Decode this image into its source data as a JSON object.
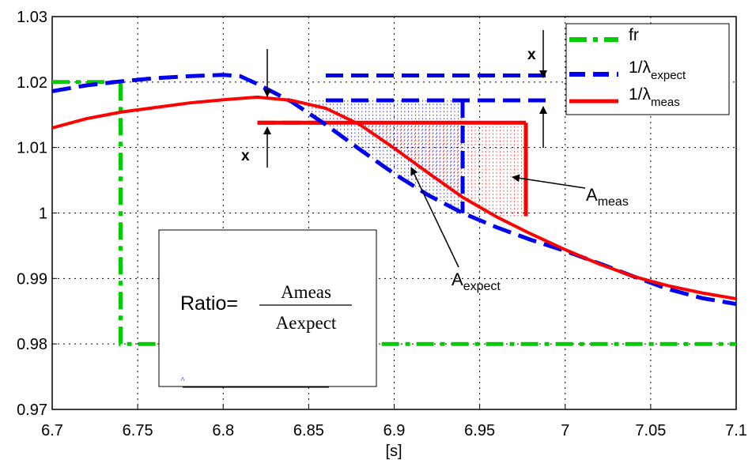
{
  "chart_data": {
    "type": "line",
    "xlabel": "[s]",
    "ylabel": "",
    "xlim": [
      6.7,
      7.1
    ],
    "ylim": [
      0.97,
      1.03
    ],
    "grid": true,
    "legend_position": "top-right",
    "x_ticks": [
      "6.7",
      "6.75",
      "6.8",
      "6.85",
      "6.9",
      "6.95",
      "7",
      "7.05",
      "7.1"
    ],
    "y_ticks": [
      "0.97",
      "0.98",
      "0.99",
      "1",
      "1.01",
      "1.02",
      "1.03"
    ],
    "series": [
      {
        "name": "fr",
        "color": "#00cc00",
        "style": "dash-dot",
        "points": [
          [
            6.7,
            1.02
          ],
          [
            6.74,
            1.02
          ],
          [
            6.74,
            0.98
          ],
          [
            7.1,
            0.98
          ]
        ]
      },
      {
        "name": "1/λexpect",
        "color": "#0000ee",
        "style": "dashed",
        "points": [
          [
            6.7,
            1.0186
          ],
          [
            6.72,
            1.0195
          ],
          [
            6.74,
            1.0201
          ],
          [
            6.76,
            1.0206
          ],
          [
            6.78,
            1.0209
          ],
          [
            6.8,
            1.0211
          ],
          [
            6.81,
            1.0209
          ],
          [
            6.82,
            1.0197
          ],
          [
            6.84,
            1.017
          ],
          [
            6.86,
            1.0135
          ],
          [
            6.88,
            1.0097
          ],
          [
            6.9,
            1.006
          ],
          [
            6.92,
            1.0027
          ],
          [
            6.94,
            1.0
          ],
          [
            6.96,
            0.9978
          ],
          [
            6.98,
            0.9959
          ],
          [
            7.0,
            0.9942
          ],
          [
            7.02,
            0.9923
          ],
          [
            7.04,
            0.9903
          ],
          [
            7.06,
            0.9884
          ],
          [
            7.08,
            0.987
          ],
          [
            7.1,
            0.9861
          ]
        ]
      },
      {
        "name": "1/λmeas",
        "color": "#ff0000",
        "style": "solid",
        "points": [
          [
            6.7,
            1.013
          ],
          [
            6.72,
            1.0144
          ],
          [
            6.74,
            1.0154
          ],
          [
            6.76,
            1.0161
          ],
          [
            6.78,
            1.0168
          ],
          [
            6.8,
            1.0173
          ],
          [
            6.82,
            1.0177
          ],
          [
            6.84,
            1.0172
          ],
          [
            6.86,
            1.016
          ],
          [
            6.88,
            1.0135
          ],
          [
            6.9,
            1.0099
          ],
          [
            6.92,
            1.0061
          ],
          [
            6.94,
            1.0024
          ],
          [
            6.96,
            0.9994
          ],
          [
            6.98,
            0.9968
          ],
          [
            7.0,
            0.9944
          ],
          [
            7.02,
            0.9922
          ],
          [
            7.04,
            0.9903
          ],
          [
            7.06,
            0.9889
          ],
          [
            7.08,
            0.9878
          ],
          [
            7.1,
            0.9869
          ]
        ]
      }
    ],
    "reference_lines": [
      {
        "series": "1/λexpect",
        "x0": 6.86,
        "x1": 6.99,
        "y": 1.021
      },
      {
        "series": "1/λexpect",
        "x0": 6.86,
        "x1": 6.99,
        "y": 1.0172
      },
      {
        "series": "1/λexpect",
        "x0": 6.94,
        "x1": 6.94,
        "y0": 1.0172,
        "y1": 1.0
      },
      {
        "series": "1/λmeas",
        "x0": 6.82,
        "x1": 6.977,
        "y": 1.0138
      },
      {
        "series": "1/λmeas",
        "x0": 6.977,
        "x1": 6.977,
        "y0": 1.0138,
        "y1": 0.9995
      }
    ],
    "annotations": {
      "x_left": "x",
      "x_right": "x",
      "a_meas_main": "A",
      "a_meas_sub": "meas",
      "a_expect_main": "A",
      "a_expect_sub": "expect"
    },
    "formula": {
      "prefix": "Ratio=",
      "numerator": "Ameas",
      "denominator": "Aexpect"
    },
    "legend": {
      "fr": "fr",
      "expect_main": "1/λ",
      "expect_sub": "expect",
      "meas_main": "1/λ",
      "meas_sub": "meas"
    }
  }
}
